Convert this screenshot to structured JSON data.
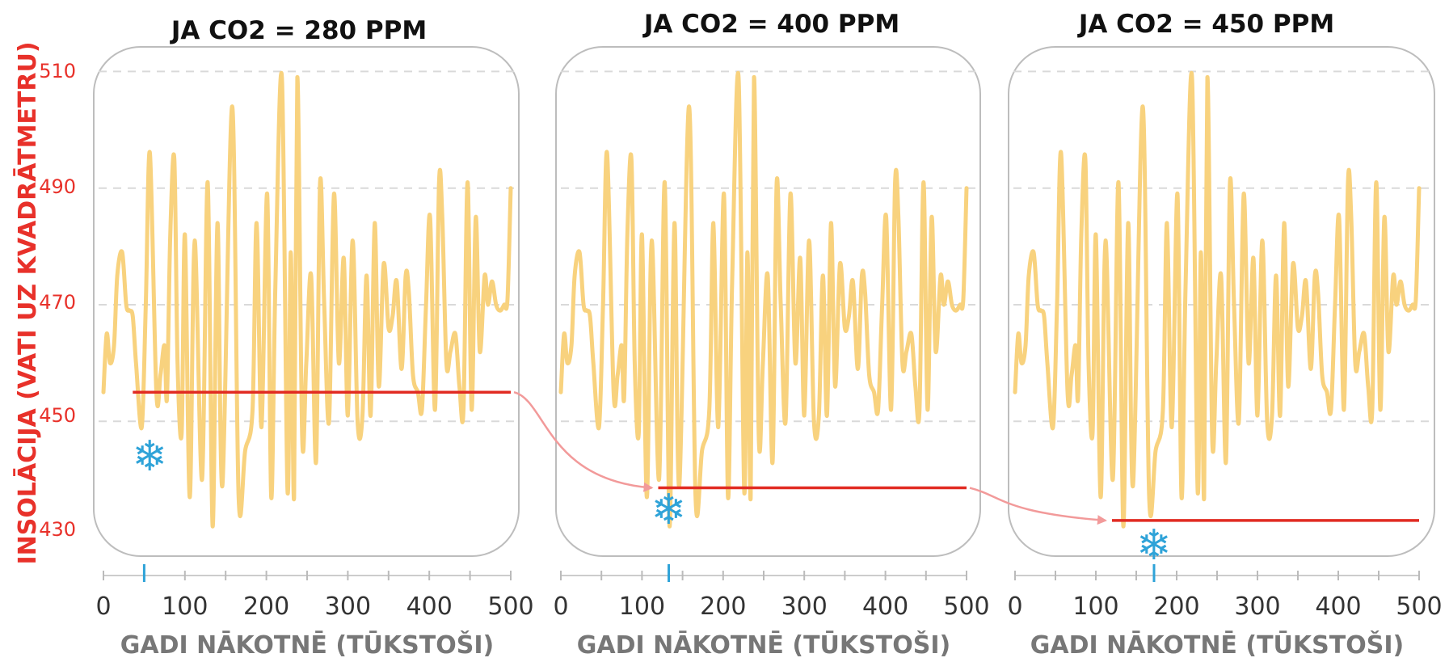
{
  "y_axis_label": "INSOLĀCIJA (VATI UZ KVADRĀTMETRU)",
  "y_ticks": [
    "510",
    "490",
    "470",
    "450",
    "430"
  ],
  "x_ticks": [
    "0",
    "100",
    "200",
    "300",
    "400",
    "500"
  ],
  "x_axis_label": "GADI NĀKOTNĒ (TŪKSTOŠI)",
  "colors": {
    "insolation_line": "#f8d27e",
    "threshold_line": "#e12b22",
    "ice_marker": "#2fa3d8",
    "arrow": "#f29a9a",
    "panel_border": "#bdbdbd",
    "grid": "#d9d9d9",
    "title": "#111111",
    "y_axis": "#e8312a",
    "x_axis_label": "#777777"
  },
  "icons": {
    "ice_age_marker": "snowflake-icon"
  },
  "chart_data": [
    {
      "type": "line",
      "title": "JA CO2 = 280 PPM",
      "xlabel": "GADI NĀKOTNĒ (TŪKSTOŠI)",
      "ylabel": "INSOLĀCIJA (VATI UZ KVADRĀTMETRU)",
      "xlim": [
        0,
        500
      ],
      "ylim": [
        428,
        512
      ],
      "y_grid": [
        510,
        490,
        470,
        450
      ],
      "x_ticks": [
        0,
        100,
        200,
        300,
        400,
        500
      ],
      "series": [
        {
          "x": [
            0,
            4,
            8,
            13,
            17,
            23,
            28,
            32,
            36,
            40,
            47,
            52,
            57,
            65,
            70,
            75,
            78,
            82,
            87,
            91,
            96,
            100,
            106,
            112,
            121,
            128,
            134,
            140,
            146,
            158,
            166,
            174,
            183,
            188,
            194,
            201,
            206,
            211,
            219,
            226,
            230,
            234,
            238,
            244,
            249,
            255,
            261,
            266,
            271,
            277,
            283,
            289,
            295,
            300,
            306,
            312,
            318,
            323,
            328,
            333,
            338,
            344,
            350,
            355,
            360,
            366,
            371,
            375,
            380,
            386,
            391,
            396,
            401,
            407,
            412,
            416,
            421,
            426,
            432,
            437,
            442,
            447,
            452,
            457,
            462,
            468,
            472,
            477,
            482,
            487,
            492,
            496,
            500
          ],
          "y": [
            455,
            465,
            460,
            463,
            475,
            479,
            470,
            469,
            468,
            460,
            449,
            470,
            496,
            455,
            458,
            463,
            454,
            482,
            495,
            460,
            448,
            482,
            437,
            481,
            440,
            491,
            432,
            484,
            439,
            504,
            437,
            445,
            452,
            484,
            449,
            489,
            437,
            473,
            509,
            438,
            479,
            437,
            509,
            447,
            460,
            475,
            443,
            491,
            470,
            450,
            489,
            460,
            478,
            451,
            481,
            450,
            451,
            475,
            451,
            484,
            456,
            477,
            466,
            468,
            474,
            459,
            475,
            472,
            458,
            455,
            452,
            470,
            485,
            452,
            491,
            485,
            460,
            462,
            465,
            456,
            452,
            491,
            452,
            485,
            462,
            475,
            470,
            474,
            470,
            469,
            470,
            471,
            490
          ]
        },
        {
          "name": "threshold",
          "x": [
            36,
            500
          ],
          "y": [
            455,
            455
          ]
        }
      ],
      "annotations": [
        {
          "type": "snowflake",
          "x": 50
        }
      ],
      "x_marker": 50
    },
    {
      "type": "line",
      "title": "JA CO2 = 400 PPM",
      "xlabel": "GADI NĀKOTNĒ (TŪKSTOŠI)",
      "xlim": [
        0,
        500
      ],
      "ylim": [
        428,
        512
      ],
      "y_grid": [
        510,
        490,
        470,
        450
      ],
      "x_ticks": [
        0,
        100,
        200,
        300,
        400,
        500
      ],
      "series": [
        {
          "x": [
            0,
            4,
            8,
            13,
            17,
            23,
            28,
            32,
            36,
            40,
            47,
            52,
            57,
            65,
            70,
            75,
            78,
            82,
            87,
            91,
            96,
            100,
            106,
            112,
            121,
            128,
            134,
            140,
            146,
            158,
            166,
            174,
            183,
            188,
            194,
            201,
            206,
            211,
            219,
            226,
            230,
            234,
            238,
            244,
            249,
            255,
            261,
            266,
            271,
            277,
            283,
            289,
            295,
            300,
            306,
            312,
            318,
            323,
            328,
            333,
            338,
            344,
            350,
            355,
            360,
            366,
            371,
            375,
            380,
            386,
            391,
            396,
            401,
            407,
            412,
            416,
            421,
            426,
            432,
            437,
            442,
            447,
            452,
            457,
            462,
            468,
            472,
            477,
            482,
            487,
            492,
            496,
            500
          ],
          "y": [
            455,
            465,
            460,
            463,
            475,
            479,
            470,
            469,
            468,
            460,
            449,
            470,
            496,
            455,
            458,
            463,
            454,
            482,
            495,
            460,
            448,
            482,
            437,
            481,
            440,
            491,
            432,
            484,
            439,
            504,
            437,
            445,
            452,
            484,
            449,
            489,
            437,
            473,
            509,
            438,
            479,
            437,
            509,
            447,
            460,
            475,
            443,
            491,
            470,
            450,
            489,
            460,
            478,
            451,
            481,
            450,
            451,
            475,
            451,
            484,
            456,
            477,
            466,
            468,
            474,
            459,
            475,
            472,
            458,
            455,
            452,
            470,
            485,
            452,
            491,
            485,
            460,
            462,
            465,
            456,
            452,
            491,
            452,
            485,
            462,
            475,
            470,
            474,
            470,
            469,
            470,
            471,
            490
          ]
        },
        {
          "name": "threshold",
          "x": [
            120,
            500
          ],
          "y": [
            438.6,
            438.6
          ]
        }
      ],
      "annotations": [
        {
          "type": "snowflake",
          "x": 133
        }
      ],
      "x_marker": 133
    },
    {
      "type": "line",
      "title": "JA CO2 = 450 PPM",
      "xlabel": "GADI NĀKOTNĒ (TŪKSTOŠI)",
      "xlim": [
        0,
        500
      ],
      "ylim": [
        428,
        512
      ],
      "y_grid": [
        510,
        490,
        470,
        450
      ],
      "x_ticks": [
        0,
        100,
        200,
        300,
        400,
        500
      ],
      "series": [
        {
          "x": [
            0,
            4,
            8,
            13,
            17,
            23,
            28,
            32,
            36,
            40,
            47,
            52,
            57,
            65,
            70,
            75,
            78,
            82,
            87,
            91,
            96,
            100,
            106,
            112,
            121,
            128,
            134,
            140,
            146,
            158,
            166,
            174,
            183,
            188,
            194,
            201,
            206,
            211,
            219,
            226,
            230,
            234,
            238,
            244,
            249,
            255,
            261,
            266,
            271,
            277,
            283,
            289,
            295,
            300,
            306,
            312,
            318,
            323,
            328,
            333,
            338,
            344,
            350,
            355,
            360,
            366,
            371,
            375,
            380,
            386,
            391,
            396,
            401,
            407,
            412,
            416,
            421,
            426,
            432,
            437,
            442,
            447,
            452,
            457,
            462,
            468,
            472,
            477,
            482,
            487,
            492,
            496,
            500
          ],
          "y": [
            455,
            465,
            460,
            463,
            475,
            479,
            470,
            469,
            468,
            460,
            449,
            470,
            496,
            455,
            458,
            463,
            454,
            482,
            495,
            460,
            448,
            482,
            437,
            481,
            440,
            491,
            432,
            484,
            439,
            504,
            437,
            445,
            452,
            484,
            449,
            489,
            437,
            473,
            509,
            438,
            479,
            437,
            509,
            447,
            460,
            475,
            443,
            491,
            470,
            450,
            489,
            460,
            478,
            451,
            481,
            450,
            451,
            475,
            451,
            484,
            456,
            477,
            466,
            468,
            474,
            459,
            475,
            472,
            458,
            455,
            452,
            470,
            485,
            452,
            491,
            485,
            460,
            462,
            465,
            456,
            452,
            491,
            452,
            485,
            462,
            475,
            470,
            474,
            470,
            469,
            470,
            471,
            490
          ]
        },
        {
          "name": "threshold",
          "x": [
            120,
            500
          ],
          "y": [
            433,
            433
          ]
        }
      ],
      "annotations": [
        {
          "type": "snowflake",
          "x": 172
        }
      ],
      "x_marker": 172
    }
  ]
}
